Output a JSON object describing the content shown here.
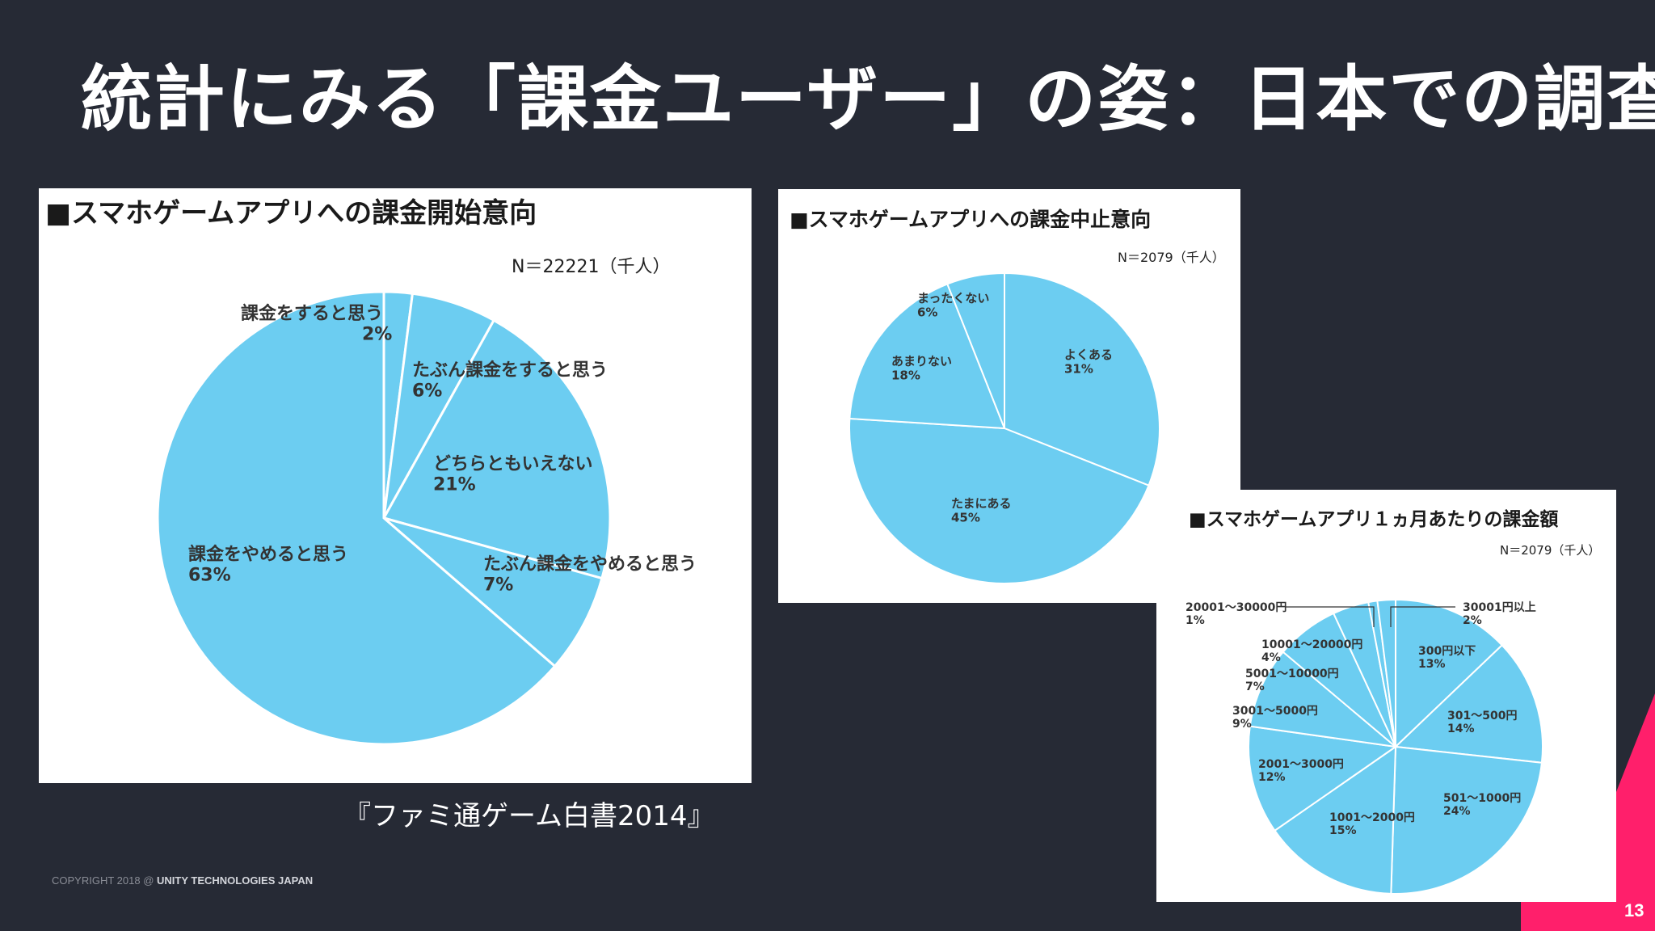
{
  "slide": {
    "title": "統計にみる「課金ユーザー」の姿：日本での調査",
    "source": "『ファミ通ゲーム白書2014』",
    "copyright_prefix": "COPYRIGHT 2018 @ ",
    "copyright_company": "UNITY TECHNOLOGIES JAPAN",
    "page_number": "13",
    "accent_color": "#ff1f6b"
  },
  "chart_data": [
    {
      "type": "pie",
      "title": "■スマホゲームアプリへの課金開始意向",
      "n_label": "N＝22221（千人）",
      "slice_color": "#6ccdf1",
      "slices": [
        {
          "label": "課金をすると思う",
          "value": 2,
          "value_label": "2%"
        },
        {
          "label": "たぶん課金をすると思う",
          "value": 6,
          "value_label": "6%"
        },
        {
          "label": "どちらともいえない",
          "value": 21,
          "value_label": "21%"
        },
        {
          "label": "たぶん課金をやめると思う",
          "value": 7,
          "value_label": "7%"
        },
        {
          "label": "課金をやめると思う",
          "value": 63,
          "value_label": "63%"
        }
      ]
    },
    {
      "type": "pie",
      "title": "■スマホゲームアプリへの課金中止意向",
      "n_label": "N＝2079（千人）",
      "slice_color": "#6ccdf1",
      "slices": [
        {
          "label": "よくある",
          "value": 31,
          "value_label": "31%"
        },
        {
          "label": "たまにある",
          "value": 45,
          "value_label": "45%"
        },
        {
          "label": "あまりない",
          "value": 18,
          "value_label": "18%"
        },
        {
          "label": "まったくない",
          "value": 6,
          "value_label": "6%"
        }
      ]
    },
    {
      "type": "pie",
      "title": "■スマホゲームアプリ１ヵ月あたりの課金額",
      "n_label": "N＝2079（千人）",
      "slice_color": "#6ccdf1",
      "slices": [
        {
          "label": "300円以下",
          "value": 13,
          "value_label": "13%"
        },
        {
          "label": "301～500円",
          "value": 14,
          "value_label": "14%"
        },
        {
          "label": "501～1000円",
          "value": 24,
          "value_label": "24%"
        },
        {
          "label": "1001～2000円",
          "value": 15,
          "value_label": "15%"
        },
        {
          "label": "2001～3000円",
          "value": 12,
          "value_label": "12%"
        },
        {
          "label": "3001～5000円",
          "value": 9,
          "value_label": "9%"
        },
        {
          "label": "5001～10000円",
          "value": 7,
          "value_label": "7%"
        },
        {
          "label": "10001～20000円",
          "value": 4,
          "value_label": "4%"
        },
        {
          "label": "20001～30000円",
          "value": 1,
          "value_label": "1%"
        },
        {
          "label": "30001円以上",
          "value": 2,
          "value_label": "2%"
        }
      ]
    }
  ]
}
